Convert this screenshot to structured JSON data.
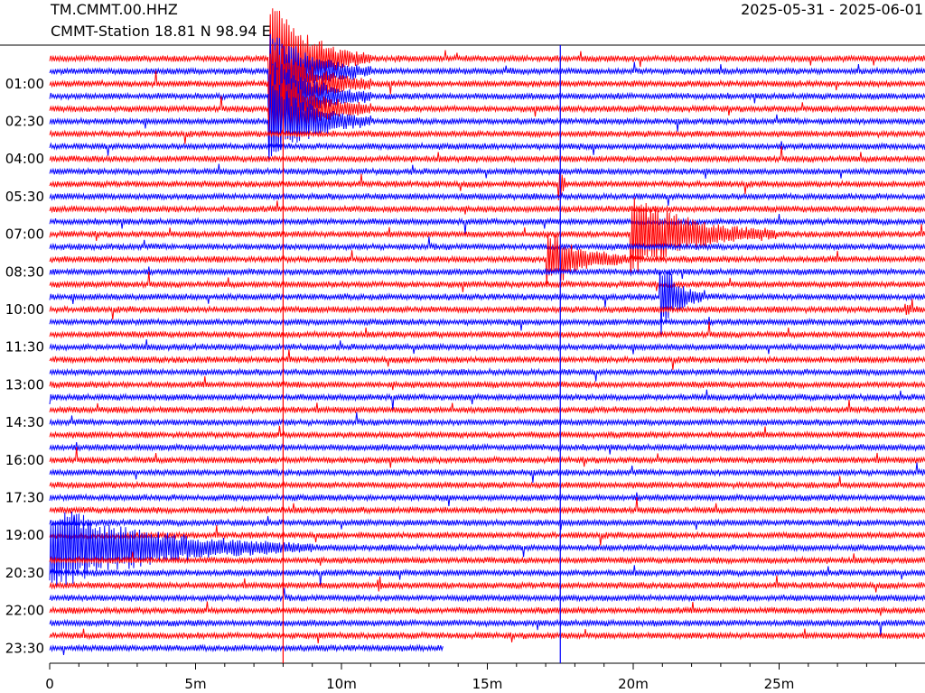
{
  "header": {
    "station_code": "TM.CMMT.00.HHZ",
    "station_info": "CMMT-Station  18.81 N 98.94 E",
    "date_range": "2025-05-31 - 2025-06-01"
  },
  "chart_data": {
    "type": "line",
    "x_tick_labels": [
      "0",
      "5m",
      "10m",
      "15m",
      "20m",
      "25m"
    ],
    "y_tick_labels": [
      "01:00",
      "02:30",
      "04:00",
      "05:30",
      "07:00",
      "08:30",
      "10:00",
      "11:30",
      "13:00",
      "14:30",
      "16:00",
      "17:30",
      "19:00",
      "20:30",
      "22:00",
      "23:30"
    ],
    "x_range_minutes": [
      0,
      30
    ],
    "trace_count": 48,
    "minutes_per_trace": 30,
    "last_trace_end_minutes": 13.5,
    "colors": [
      "#ff0000",
      "#0000ff"
    ],
    "events": [
      {
        "trace_start": 0,
        "onset_minutes": 7.5,
        "duration_minutes": 3.5,
        "max_amplitude_traces": 5,
        "spans_traces": 6
      },
      {
        "trace_start": 10,
        "onset_minutes": 17.4,
        "duration_minutes": 0.3,
        "max_amplitude_traces": 3
      },
      {
        "trace_start": 16,
        "onset_minutes": 17.0,
        "duration_minutes": 3.0,
        "max_amplitude_traces": 2.5
      },
      {
        "trace_start": 14,
        "onset_minutes": 19.9,
        "duration_minutes": 5.0,
        "max_amplitude_traces": 3.5
      },
      {
        "trace_start": 19,
        "onset_minutes": 20.9,
        "duration_minutes": 1.5,
        "max_amplitude_traces": 3.5
      },
      {
        "trace_start": 39,
        "onset_minutes": 0.0,
        "duration_minutes": 9.0,
        "max_amplitude_traces": 3.5
      },
      {
        "trace_start": 42,
        "onset_minutes": 11.2,
        "duration_minutes": 0.5,
        "max_amplitude_traces": 0.5
      },
      {
        "trace_start": 20,
        "onset_minutes": 29.3,
        "duration_minutes": 0.7,
        "max_amplitude_traces": 0.4
      }
    ],
    "vertical_lines_minutes": [
      {
        "minutes": 8.0,
        "color": "#ff0000"
      },
      {
        "minutes": 17.5,
        "color": "#0000ff"
      }
    ]
  }
}
